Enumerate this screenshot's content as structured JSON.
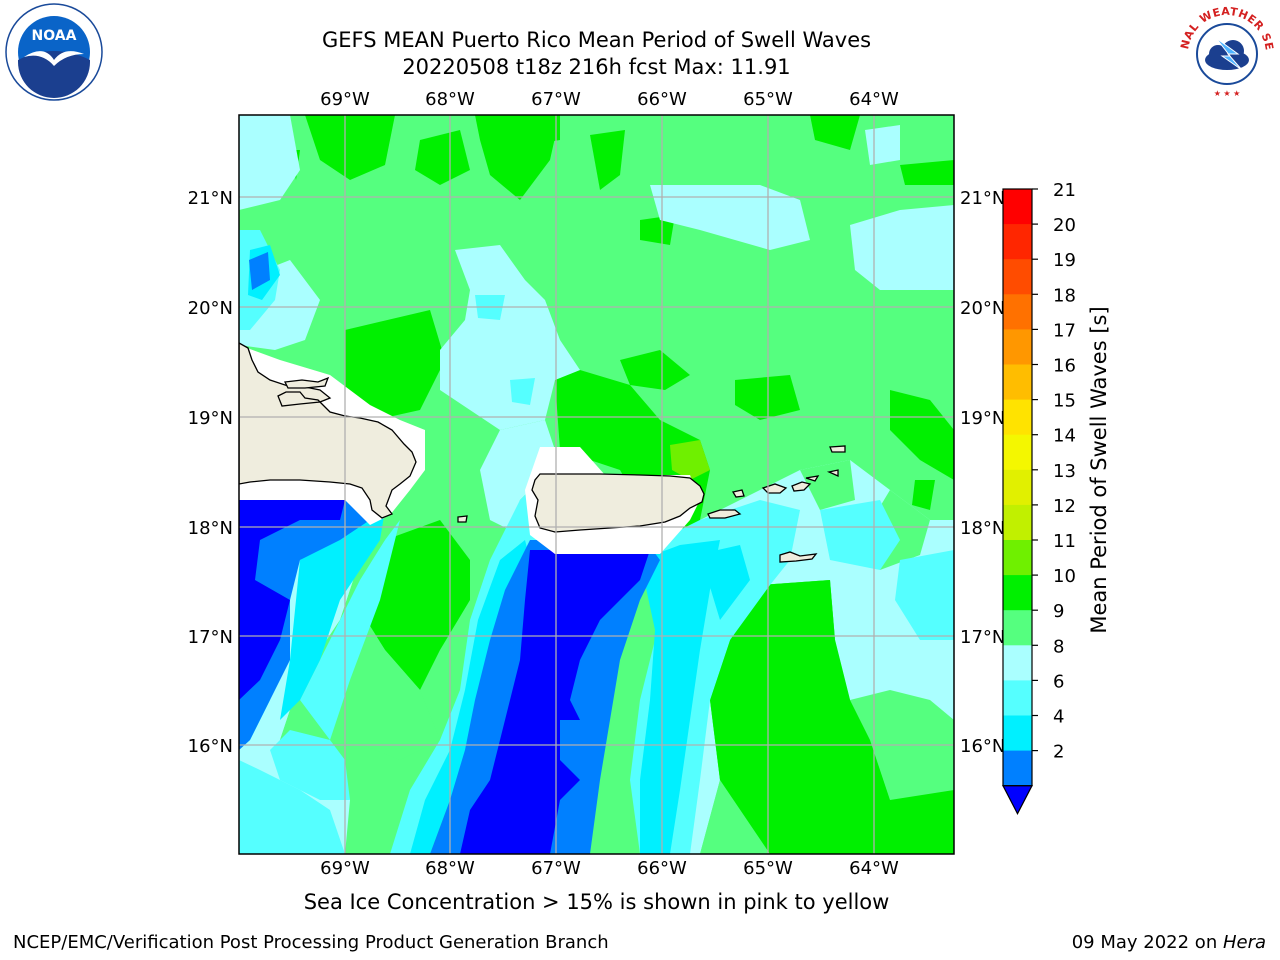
{
  "title": {
    "line1": "GEFS MEAN Puerto Rico Mean Period of Swell Waves",
    "line2": "20220508 t18z 216h fcst   Max: 11.91"
  },
  "logos": {
    "left": {
      "icon": "noaa-logo",
      "text": "NOAA"
    },
    "right": {
      "icon": "nws-logo",
      "text": "NATIONAL WEATHER SERVICE"
    }
  },
  "map": {
    "lon_labels": [
      "69°W",
      "68°W",
      "67°W",
      "66°W",
      "65°W",
      "64°W"
    ],
    "lat_labels": [
      "21°N",
      "20°N",
      "19°N",
      "18°N",
      "17°N",
      "16°N"
    ],
    "grid": true,
    "land_color": "#efedde",
    "coast_color": "#000000"
  },
  "colorbar": {
    "label": "Mean Period of Swell Waves [s]",
    "levels": [
      "21",
      "20",
      "19",
      "18",
      "17",
      "16",
      "15",
      "14",
      "13",
      "12",
      "11",
      "10",
      "9",
      "8",
      "6",
      "4",
      "2"
    ],
    "colors": [
      "#ff0000",
      "#ff2600",
      "#ff4c00",
      "#ff7100",
      "#ff9700",
      "#ffbd00",
      "#ffe300",
      "#f4f700",
      "#e1f000",
      "#c1f000",
      "#6ff000",
      "#00f000",
      "#55ff7f",
      "#aaffff",
      "#55ffff",
      "#00f0ff",
      "#0080ff"
    ],
    "under_color": "#0000ff",
    "extend": "min"
  },
  "caption": "Sea Ice Concentration > 15% is shown in pink to yellow",
  "footer": {
    "left": "NCEP/EMC/Verification Post Processing Product Generation Branch",
    "date": "09 May 2022 on ",
    "host": "Hera"
  }
}
